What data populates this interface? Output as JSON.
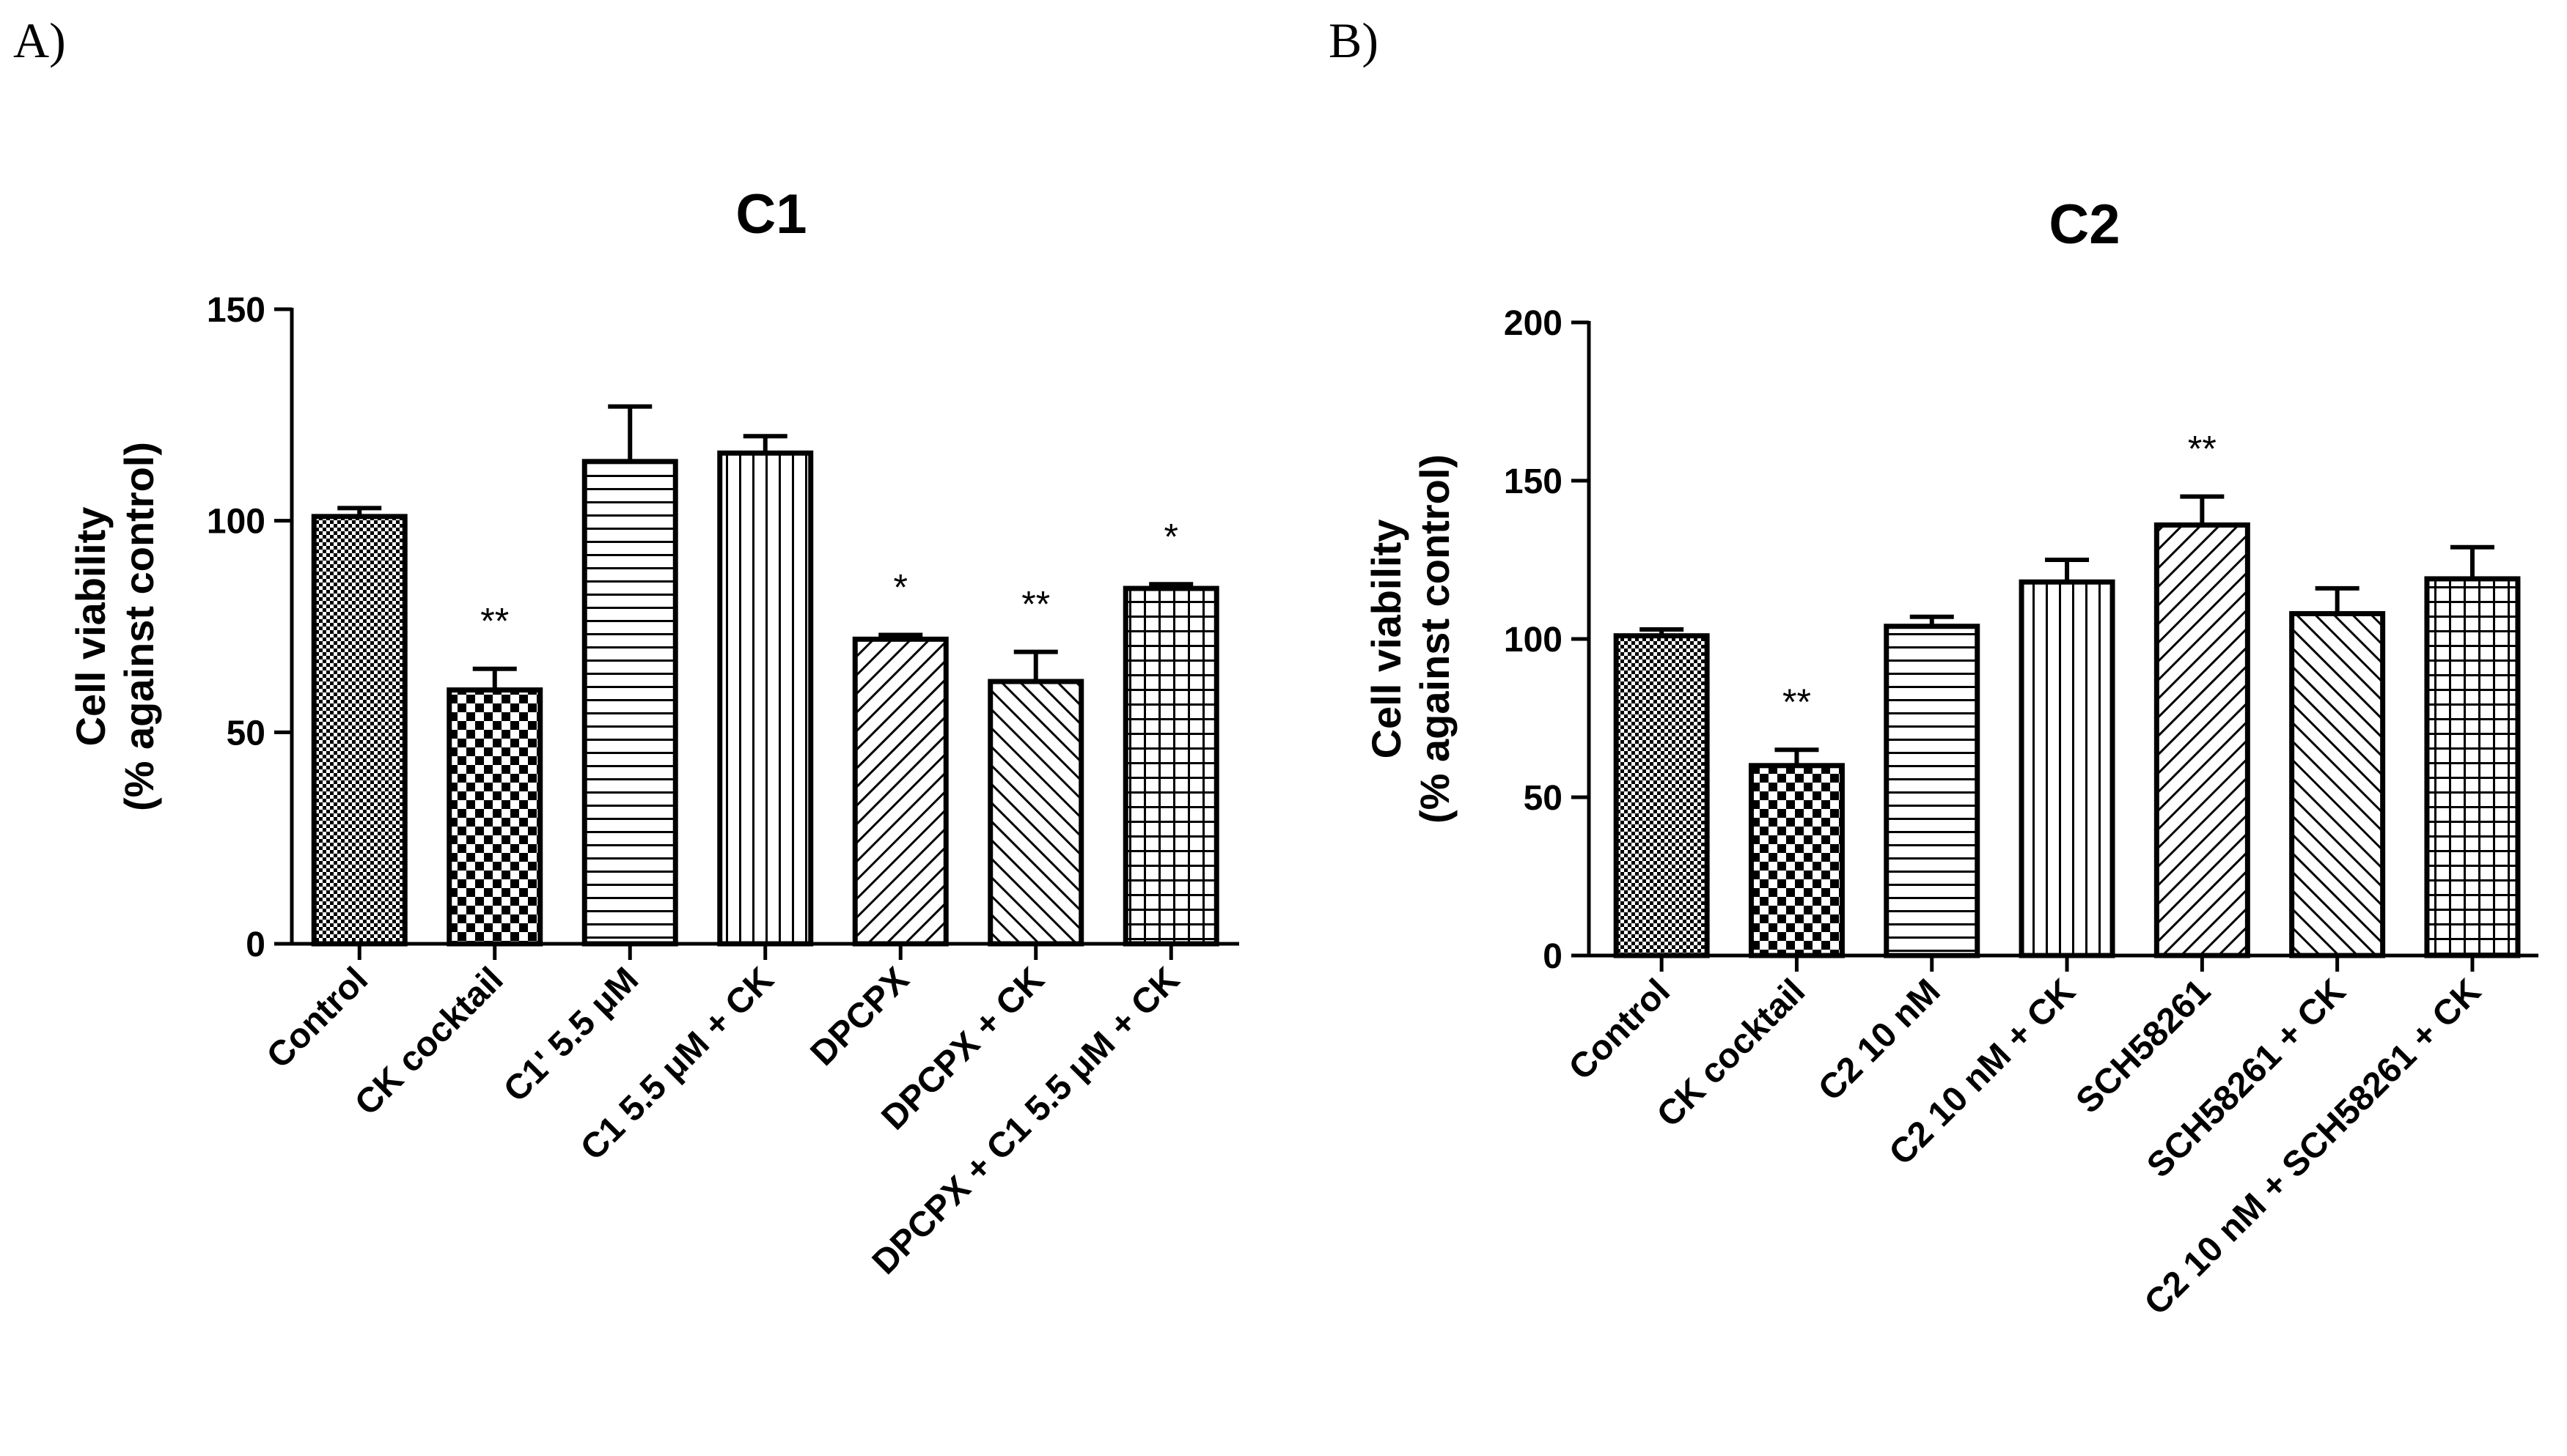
{
  "panels": {
    "a_label": "A)",
    "b_label": "B)"
  },
  "patterns": [
    "dense-check",
    "checker",
    "horizontal",
    "vertical",
    "diagonal-forward",
    "diagonal-back",
    "grid"
  ],
  "chart_data": [
    {
      "type": "bar",
      "title": "C1",
      "ylabel": [
        "Cell viability",
        "(% against control)"
      ],
      "ylim": [
        0,
        150
      ],
      "yticks": [
        0,
        50,
        100,
        150
      ],
      "categories": [
        "Control",
        "CK cocktail",
        "C1' 5.5 μM",
        "C1 5.5 μM + CK",
        "DPCPX",
        "DPCPX + CK",
        "DPCPX + C1 5.5 μM + CK"
      ],
      "values": [
        101,
        60,
        114,
        116,
        72,
        62,
        84
      ],
      "errors": [
        2,
        5,
        13,
        4,
        1,
        7,
        1
      ],
      "significance": [
        "",
        "**",
        "",
        "",
        "*",
        "**",
        "*"
      ]
    },
    {
      "type": "bar",
      "title": "C2",
      "ylabel": [
        "Cell viability",
        "(% against control)"
      ],
      "ylim": [
        0,
        200
      ],
      "yticks": [
        0,
        50,
        100,
        150,
        200
      ],
      "categories": [
        "Control",
        "CK cocktail",
        "C2 10 nM",
        "C2 10 nM + CK",
        "SCH58261",
        "SCH58261 + CK",
        "C2 10 nM + SCH58261 + CK"
      ],
      "values": [
        101,
        60,
        104,
        118,
        136,
        108,
        119
      ],
      "errors": [
        2,
        5,
        3,
        7,
        9,
        8,
        10
      ],
      "significance": [
        "",
        "**",
        "",
        "",
        "**",
        "",
        ""
      ]
    }
  ]
}
